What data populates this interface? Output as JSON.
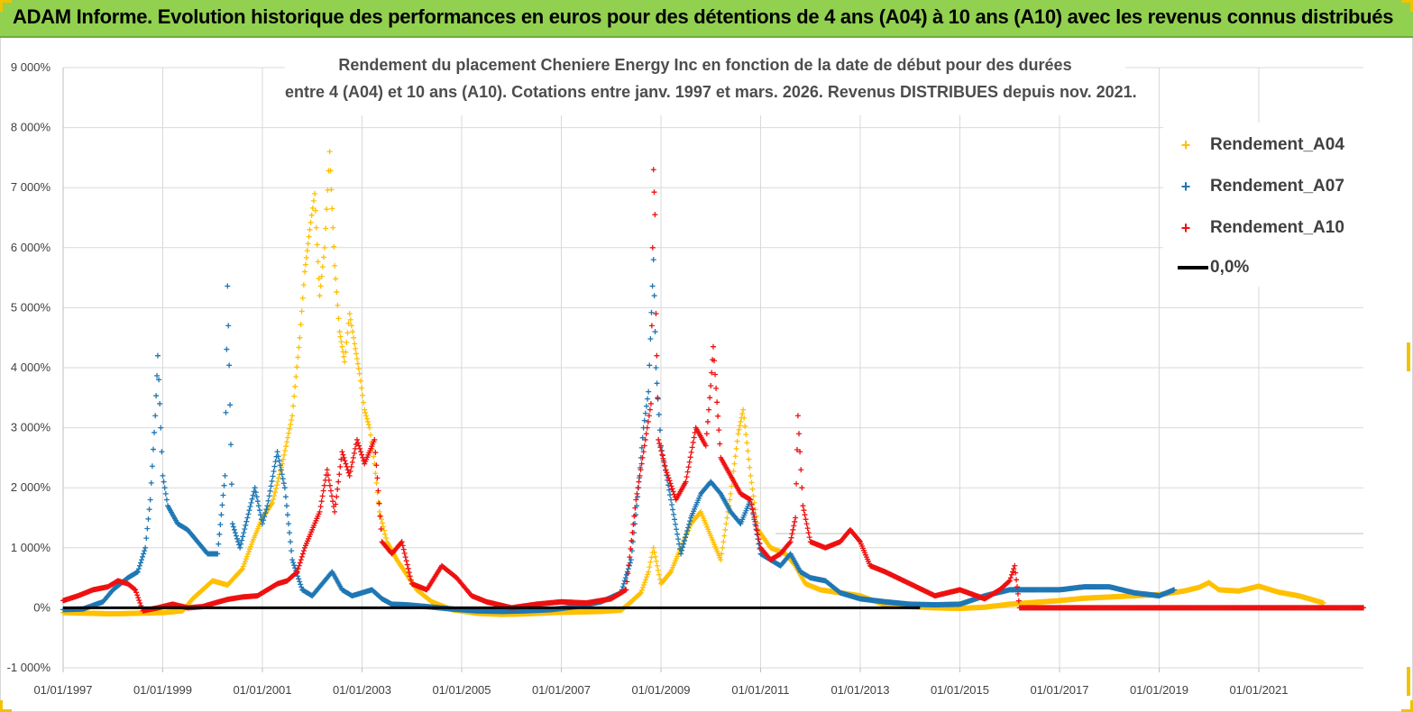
{
  "header": {
    "title": "ADAM Informe. Evolution historique des performances en euros pour des détentions de 4 ans (A04) à 10 ans (A10) avec les revenus connus distribués"
  },
  "chart_data": {
    "type": "scatter",
    "title_line1": "Rendement du placement Cheniere Energy Inc en fonction de la date de début pour des durées",
    "title_line2": "entre 4 (A04) et 10 ans (A10).  Cotations entre janv. 1997 et mars. 2026. Revenus DISTRIBUES depuis nov. 2021.",
    "xlabel": "",
    "ylabel": "",
    "x_range": [
      1997.0,
      2023.1
    ],
    "ylim": [
      -1000,
      9000
    ],
    "y_ticks": [
      -1000,
      0,
      1000,
      2000,
      3000,
      4000,
      5000,
      6000,
      7000,
      8000,
      9000
    ],
    "y_tick_labels": [
      "-1 000%",
      "0%",
      "1 000%",
      "2 000%",
      "3 000%",
      "4 000%",
      "5 000%",
      "6 000%",
      "7 000%",
      "8 000%",
      "9 000%"
    ],
    "x_ticks": [
      1997,
      1999,
      2001,
      2003,
      2005,
      2007,
      2009,
      2011,
      2013,
      2015,
      2017,
      2019,
      2021
    ],
    "x_tick_labels": [
      "01/01/1997",
      "01/01/1999",
      "01/01/2001",
      "01/01/2003",
      "01/01/2005",
      "01/01/2007",
      "01/01/2009",
      "01/01/2011",
      "01/01/2013",
      "01/01/2015",
      "01/01/2017",
      "01/01/2019",
      "01/01/2021"
    ],
    "legend_position": "top-right",
    "series": [
      {
        "name": "Rendement_A04",
        "color": "#ffc000",
        "marker": "+",
        "points": [
          [
            1997.0,
            -80
          ],
          [
            1997.5,
            -90
          ],
          [
            1998.0,
            -100
          ],
          [
            1998.5,
            -90
          ],
          [
            1999.0,
            -80
          ],
          [
            1999.4,
            -50
          ],
          [
            1999.6,
            150
          ],
          [
            1999.8,
            300
          ],
          [
            2000.0,
            450
          ],
          [
            2000.3,
            380
          ],
          [
            2000.6,
            650
          ],
          [
            2000.8,
            1100
          ],
          [
            2001.0,
            1500
          ],
          [
            2001.2,
            1750
          ],
          [
            2001.4,
            2400
          ],
          [
            2001.6,
            3200
          ],
          [
            2001.75,
            4500
          ],
          [
            2001.85,
            5600
          ],
          [
            2001.95,
            6300
          ],
          [
            2002.05,
            6900
          ],
          [
            2002.15,
            5200
          ],
          [
            2002.25,
            6000
          ],
          [
            2002.35,
            7600
          ],
          [
            2002.45,
            5700
          ],
          [
            2002.55,
            4600
          ],
          [
            2002.65,
            4100
          ],
          [
            2002.75,
            4900
          ],
          [
            2002.85,
            4400
          ],
          [
            2002.95,
            3900
          ],
          [
            2003.05,
            3300
          ],
          [
            2003.15,
            3000
          ],
          [
            2003.25,
            2400
          ],
          [
            2003.35,
            1600
          ],
          [
            2003.5,
            1100
          ],
          [
            2003.7,
            800
          ],
          [
            2003.9,
            550
          ],
          [
            2004.1,
            300
          ],
          [
            2004.4,
            100
          ],
          [
            2004.8,
            -30
          ],
          [
            2005.3,
            -90
          ],
          [
            2005.8,
            -110
          ],
          [
            2006.3,
            -100
          ],
          [
            2006.8,
            -80
          ],
          [
            2007.3,
            -70
          ],
          [
            2007.8,
            -60
          ],
          [
            2008.2,
            -40
          ],
          [
            2008.4,
            100
          ],
          [
            2008.6,
            250
          ],
          [
            2008.75,
            600
          ],
          [
            2008.85,
            1000
          ],
          [
            2009.0,
            400
          ],
          [
            2009.2,
            600
          ],
          [
            2009.4,
            1000
          ],
          [
            2009.6,
            1400
          ],
          [
            2009.8,
            1600
          ],
          [
            2010.0,
            1200
          ],
          [
            2010.2,
            800
          ],
          [
            2010.4,
            1900
          ],
          [
            2010.55,
            2900
          ],
          [
            2010.65,
            3300
          ],
          [
            2010.8,
            2200
          ],
          [
            2010.95,
            1300
          ],
          [
            2011.2,
            1000
          ],
          [
            2011.5,
            900
          ],
          [
            2011.7,
            700
          ],
          [
            2011.9,
            400
          ],
          [
            2012.2,
            300
          ],
          [
            2012.6,
            250
          ],
          [
            2013.0,
            200
          ],
          [
            2013.5,
            50
          ],
          [
            2014.0,
            20
          ],
          [
            2014.5,
            0
          ],
          [
            2015.0,
            -10
          ],
          [
            2015.5,
            10
          ],
          [
            2016.0,
            60
          ],
          [
            2016.5,
            90
          ],
          [
            2017.0,
            120
          ],
          [
            2017.5,
            160
          ],
          [
            2018.0,
            180
          ],
          [
            2018.5,
            200
          ],
          [
            2019.0,
            220
          ],
          [
            2019.5,
            280
          ],
          [
            2019.8,
            340
          ],
          [
            2020.0,
            420
          ],
          [
            2020.2,
            300
          ],
          [
            2020.6,
            280
          ],
          [
            2021.0,
            360
          ],
          [
            2021.4,
            260
          ],
          [
            2021.8,
            200
          ],
          [
            2022.1,
            130
          ],
          [
            2022.3,
            80
          ]
        ]
      },
      {
        "name": "Rendement_A07",
        "color": "#1f77b4",
        "marker": "+",
        "points": [
          [
            1997.0,
            -30
          ],
          [
            1997.4,
            -20
          ],
          [
            1997.8,
            100
          ],
          [
            1998.0,
            300
          ],
          [
            1998.3,
            500
          ],
          [
            1998.5,
            600
          ],
          [
            1998.65,
            1000
          ],
          [
            1998.75,
            1800
          ],
          [
            1998.85,
            3200
          ],
          [
            1998.9,
            4200
          ],
          [
            1999.0,
            2200
          ],
          [
            1999.1,
            1700
          ],
          [
            1999.3,
            1400
          ],
          [
            1999.5,
            1300
          ],
          [
            1999.7,
            1100
          ],
          [
            1999.9,
            900
          ],
          [
            2000.1,
            900
          ],
          [
            2000.25,
            2200
          ],
          [
            2000.3,
            5360
          ],
          [
            2000.4,
            1400
          ],
          [
            2000.55,
            1000
          ],
          [
            2000.7,
            1500
          ],
          [
            2000.85,
            2000
          ],
          [
            2001.0,
            1400
          ],
          [
            2001.1,
            1700
          ],
          [
            2001.3,
            2600
          ],
          [
            2001.45,
            2000
          ],
          [
            2001.6,
            800
          ],
          [
            2001.8,
            300
          ],
          [
            2002.0,
            200
          ],
          [
            2002.2,
            400
          ],
          [
            2002.4,
            600
          ],
          [
            2002.6,
            300
          ],
          [
            2002.8,
            200
          ],
          [
            2003.0,
            250
          ],
          [
            2003.2,
            300
          ],
          [
            2003.4,
            150
          ],
          [
            2003.6,
            60
          ],
          [
            2003.9,
            50
          ],
          [
            2004.3,
            20
          ],
          [
            2004.8,
            -20
          ],
          [
            2005.3,
            -50
          ],
          [
            2005.8,
            -60
          ],
          [
            2006.3,
            -50
          ],
          [
            2006.8,
            -30
          ],
          [
            2007.3,
            20
          ],
          [
            2007.8,
            100
          ],
          [
            2008.2,
            250
          ],
          [
            2008.4,
            800
          ],
          [
            2008.55,
            2000
          ],
          [
            2008.65,
            3000
          ],
          [
            2008.75,
            3600
          ],
          [
            2008.85,
            5800
          ],
          [
            2008.9,
            4000
          ],
          [
            2009.0,
            2700
          ],
          [
            2009.2,
            1800
          ],
          [
            2009.4,
            900
          ],
          [
            2009.6,
            1500
          ],
          [
            2009.8,
            1900
          ],
          [
            2010.0,
            2100
          ],
          [
            2010.2,
            1900
          ],
          [
            2010.4,
            1600
          ],
          [
            2010.6,
            1400
          ],
          [
            2010.8,
            1800
          ],
          [
            2011.0,
            900
          ],
          [
            2011.2,
            800
          ],
          [
            2011.4,
            700
          ],
          [
            2011.6,
            900
          ],
          [
            2011.8,
            600
          ],
          [
            2012.0,
            500
          ],
          [
            2012.3,
            450
          ],
          [
            2012.6,
            250
          ],
          [
            2013.0,
            150
          ],
          [
            2013.5,
            100
          ],
          [
            2014.0,
            60
          ],
          [
            2014.5,
            50
          ],
          [
            2015.0,
            60
          ],
          [
            2015.5,
            200
          ],
          [
            2016.0,
            300
          ],
          [
            2016.5,
            300
          ],
          [
            2017.0,
            300
          ],
          [
            2017.5,
            350
          ],
          [
            2018.0,
            350
          ],
          [
            2018.5,
            250
          ],
          [
            2019.0,
            200
          ],
          [
            2019.3,
            300
          ]
        ]
      },
      {
        "name": "Rendement_A10",
        "color": "#ee1111",
        "marker": "+",
        "points": [
          [
            1997.0,
            120
          ],
          [
            1997.3,
            200
          ],
          [
            1997.6,
            300
          ],
          [
            1997.9,
            350
          ],
          [
            1998.1,
            450
          ],
          [
            1998.3,
            400
          ],
          [
            1998.45,
            300
          ],
          [
            1998.6,
            -50
          ],
          [
            1998.9,
            0
          ],
          [
            1999.2,
            60
          ],
          [
            1999.5,
            0
          ],
          [
            1999.8,
            20
          ],
          [
            2000.0,
            70
          ],
          [
            2000.3,
            140
          ],
          [
            2000.6,
            180
          ],
          [
            2000.9,
            200
          ],
          [
            2001.1,
            300
          ],
          [
            2001.3,
            400
          ],
          [
            2001.5,
            450
          ],
          [
            2001.7,
            600
          ],
          [
            2001.85,
            1000
          ],
          [
            2002.0,
            1300
          ],
          [
            2002.15,
            1600
          ],
          [
            2002.3,
            2300
          ],
          [
            2002.45,
            1600
          ],
          [
            2002.6,
            2600
          ],
          [
            2002.75,
            2200
          ],
          [
            2002.9,
            2800
          ],
          [
            2003.05,
            2400
          ],
          [
            2003.25,
            2800
          ],
          [
            2003.4,
            1100
          ],
          [
            2003.6,
            900
          ],
          [
            2003.8,
            1100
          ],
          [
            2004.0,
            400
          ],
          [
            2004.3,
            300
          ],
          [
            2004.6,
            700
          ],
          [
            2004.9,
            500
          ],
          [
            2005.2,
            200
          ],
          [
            2005.5,
            100
          ],
          [
            2006.0,
            0
          ],
          [
            2006.5,
            60
          ],
          [
            2007.0,
            100
          ],
          [
            2007.5,
            80
          ],
          [
            2008.0,
            150
          ],
          [
            2008.3,
            300
          ],
          [
            2008.5,
            1800
          ],
          [
            2008.65,
            2600
          ],
          [
            2008.8,
            3400
          ],
          [
            2008.85,
            7300
          ],
          [
            2008.88,
            6550
          ],
          [
            2008.9,
            4900
          ],
          [
            2008.95,
            2800
          ],
          [
            2009.1,
            2300
          ],
          [
            2009.3,
            1800
          ],
          [
            2009.5,
            2100
          ],
          [
            2009.7,
            3000
          ],
          [
            2009.9,
            2700
          ],
          [
            2010.0,
            3700
          ],
          [
            2010.05,
            4350
          ],
          [
            2010.2,
            2500
          ],
          [
            2010.4,
            2200
          ],
          [
            2010.6,
            1900
          ],
          [
            2010.8,
            1800
          ],
          [
            2011.0,
            1000
          ],
          [
            2011.2,
            800
          ],
          [
            2011.4,
            900
          ],
          [
            2011.6,
            1100
          ],
          [
            2011.7,
            1500
          ],
          [
            2011.75,
            3200
          ],
          [
            2011.85,
            1700
          ],
          [
            2012.0,
            1100
          ],
          [
            2012.3,
            1000
          ],
          [
            2012.6,
            1100
          ],
          [
            2012.8,
            1300
          ],
          [
            2013.0,
            1100
          ],
          [
            2013.2,
            700
          ],
          [
            2013.5,
            600
          ],
          [
            2014.0,
            400
          ],
          [
            2014.5,
            200
          ],
          [
            2015.0,
            300
          ],
          [
            2015.5,
            150
          ],
          [
            2015.8,
            300
          ],
          [
            2016.0,
            450
          ],
          [
            2016.1,
            700
          ],
          [
            2016.2,
            0
          ],
          [
            2017.0,
            0
          ],
          [
            2018.0,
            0
          ],
          [
            2019.0,
            0
          ],
          [
            2020.0,
            0
          ],
          [
            2021.0,
            0
          ],
          [
            2022.0,
            0
          ],
          [
            2023.1,
            0
          ]
        ]
      }
    ],
    "reference_line": {
      "name": "0,0%",
      "value": 0,
      "color": "#000000"
    }
  }
}
